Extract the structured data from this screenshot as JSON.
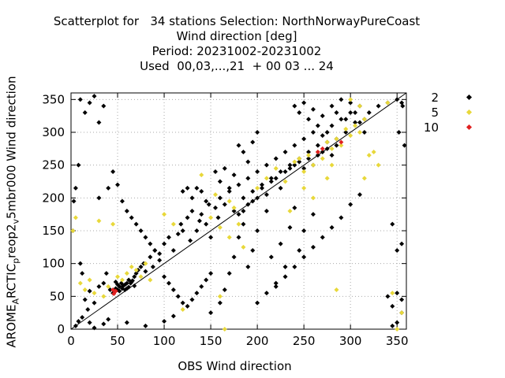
{
  "chart_data": {
    "type": "scatter",
    "title_lines": [
      "Scatterplot for   34 stations Selection: NorthNorwayPureCoast",
      "Wind direction [deg]",
      "Period: 20231002-20231002",
      "Used  00,03,...,21  + 00 03 ... 24"
    ],
    "xlabel": "OBS Wind direction",
    "ylabel": {
      "part1": "AROME",
      "sub1": "A",
      "part2": "RCTIC",
      "sub2": "p",
      "part3": "reop2",
      "sub3": "v",
      "part4": "5mbr000 Wind direction"
    },
    "xlim": [
      0,
      360
    ],
    "ylim": [
      0,
      360
    ],
    "xticks": [
      0,
      50,
      100,
      150,
      200,
      250,
      300,
      350
    ],
    "yticks": [
      0,
      50,
      100,
      150,
      200,
      250,
      300,
      350
    ],
    "grid": true,
    "diagonal_line": true,
    "legend_position": "right",
    "series": [
      {
        "name": "2",
        "color": "#000000",
        "points": [
          [
            5,
            5
          ],
          [
            8,
            12
          ],
          [
            12,
            18
          ],
          [
            15,
            45
          ],
          [
            18,
            30
          ],
          [
            20,
            58
          ],
          [
            25,
            40
          ],
          [
            30,
            65
          ],
          [
            35,
            70
          ],
          [
            38,
            85
          ],
          [
            42,
            60
          ],
          [
            45,
            55
          ],
          [
            48,
            72
          ],
          [
            50,
            60
          ],
          [
            52,
            65
          ],
          [
            55,
            62
          ],
          [
            58,
            68
          ],
          [
            60,
            70
          ],
          [
            62,
            75
          ],
          [
            65,
            72
          ],
          [
            68,
            80
          ],
          [
            70,
            85
          ],
          [
            72,
            90
          ],
          [
            75,
            95
          ],
          [
            78,
            100
          ],
          [
            80,
            88
          ],
          [
            85,
            110
          ],
          [
            88,
            95
          ],
          [
            90,
            120
          ],
          [
            95,
            105
          ],
          [
            100,
            130
          ],
          [
            105,
            140
          ],
          [
            110,
            120
          ],
          [
            115,
            145
          ],
          [
            118,
            160
          ],
          [
            120,
            150
          ],
          [
            125,
            170
          ],
          [
            128,
            135
          ],
          [
            130,
            180
          ],
          [
            135,
            150
          ],
          [
            138,
            165
          ],
          [
            140,
            175
          ],
          [
            145,
            160
          ],
          [
            148,
            190
          ],
          [
            150,
            140
          ],
          [
            155,
            185
          ],
          [
            158,
            170
          ],
          [
            160,
            200
          ],
          [
            165,
            190
          ],
          [
            170,
            210
          ],
          [
            175,
            180
          ],
          [
            180,
            220
          ],
          [
            185,
            200
          ],
          [
            190,
            230
          ],
          [
            195,
            210
          ],
          [
            200,
            240
          ],
          [
            205,
            220
          ],
          [
            210,
            250
          ],
          [
            215,
            230
          ],
          [
            220,
            260
          ],
          [
            225,
            240
          ],
          [
            230,
            270
          ],
          [
            235,
            250
          ],
          [
            240,
            280
          ],
          [
            245,
            260
          ],
          [
            250,
            290
          ],
          [
            255,
            270
          ],
          [
            260,
            300
          ],
          [
            265,
            280
          ],
          [
            270,
            295
          ],
          [
            275,
            285
          ],
          [
            280,
            310
          ],
          [
            285,
            290
          ],
          [
            290,
            320
          ],
          [
            295,
            300
          ],
          [
            300,
            330
          ],
          [
            305,
            315
          ],
          [
            310,
            340
          ],
          [
            315,
            320
          ],
          [
            320,
            330
          ],
          [
            330,
            340
          ],
          [
            340,
            345
          ],
          [
            350,
            350
          ],
          [
            355,
            345
          ],
          [
            10,
            350
          ],
          [
            15,
            330
          ],
          [
            20,
            345
          ],
          [
            25,
            355
          ],
          [
            30,
            315
          ],
          [
            35,
            340
          ],
          [
            5,
            215
          ],
          [
            8,
            250
          ],
          [
            3,
            195
          ],
          [
            2,
            150
          ],
          [
            10,
            100
          ],
          [
            12,
            85
          ],
          [
            20,
            10
          ],
          [
            25,
            2
          ],
          [
            35,
            8
          ],
          [
            40,
            15
          ],
          [
            60,
            10
          ],
          [
            80,
            5
          ],
          [
            100,
            12
          ],
          [
            110,
            20
          ],
          [
            150,
            25
          ],
          [
            160,
            40
          ],
          [
            165,
            60
          ],
          [
            170,
            85
          ],
          [
            175,
            110
          ],
          [
            180,
            140
          ],
          [
            185,
            160
          ],
          [
            190,
            95
          ],
          [
            195,
            120
          ],
          [
            200,
            150
          ],
          [
            210,
            180
          ],
          [
            215,
            110
          ],
          [
            220,
            70
          ],
          [
            225,
            130
          ],
          [
            230,
            95
          ],
          [
            235,
            155
          ],
          [
            240,
            185
          ],
          [
            245,
            120
          ],
          [
            250,
            150
          ],
          [
            260,
            175
          ],
          [
            120,
            210
          ],
          [
            125,
            215
          ],
          [
            130,
            200
          ],
          [
            135,
            215
          ],
          [
            140,
            210
          ],
          [
            145,
            195
          ],
          [
            155,
            240
          ],
          [
            160,
            225
          ],
          [
            165,
            245
          ],
          [
            170,
            215
          ],
          [
            175,
            235
          ],
          [
            180,
            280
          ],
          [
            185,
            270
          ],
          [
            190,
            255
          ],
          [
            195,
            285
          ],
          [
            200,
            300
          ],
          [
            240,
            340
          ],
          [
            245,
            330
          ],
          [
            250,
            345
          ],
          [
            255,
            320
          ],
          [
            260,
            335
          ],
          [
            265,
            310
          ],
          [
            270,
            325
          ],
          [
            275,
            300
          ],
          [
            280,
            340
          ],
          [
            285,
            330
          ],
          [
            290,
            350
          ],
          [
            295,
            320
          ],
          [
            300,
            345
          ],
          [
            305,
            330
          ],
          [
            310,
            315
          ],
          [
            315,
            300
          ],
          [
            350,
            120
          ],
          [
            355,
            130
          ],
          [
            345,
            160
          ],
          [
            355,
            45
          ],
          [
            350,
            55
          ],
          [
            345,
            35
          ],
          [
            355,
            25
          ],
          [
            340,
            50
          ],
          [
            350,
            10
          ],
          [
            345,
            5
          ],
          [
            356,
            340
          ],
          [
            352,
            300
          ],
          [
            358,
            280
          ],
          [
            30,
            200
          ],
          [
            40,
            215
          ],
          [
            50,
            220
          ],
          [
            45,
            240
          ],
          [
            55,
            195
          ],
          [
            60,
            180
          ],
          [
            65,
            170
          ],
          [
            70,
            160
          ],
          [
            75,
            150
          ],
          [
            80,
            140
          ],
          [
            85,
            130
          ],
          [
            90,
            120
          ],
          [
            95,
            115
          ],
          [
            100,
            80
          ],
          [
            105,
            70
          ],
          [
            110,
            60
          ],
          [
            115,
            50
          ],
          [
            120,
            40
          ],
          [
            125,
            35
          ],
          [
            130,
            45
          ],
          [
            135,
            55
          ],
          [
            140,
            65
          ],
          [
            145,
            75
          ],
          [
            150,
            85
          ],
          [
            200,
            40
          ],
          [
            210,
            55
          ],
          [
            220,
            65
          ],
          [
            230,
            80
          ],
          [
            240,
            95
          ],
          [
            250,
            110
          ],
          [
            260,
            125
          ],
          [
            270,
            140
          ],
          [
            280,
            155
          ],
          [
            290,
            170
          ],
          [
            300,
            190
          ],
          [
            310,
            205
          ],
          [
            48,
            62
          ],
          [
            52,
            58
          ],
          [
            56,
            66
          ],
          [
            58,
            60
          ],
          [
            62,
            64
          ],
          [
            64,
            70
          ],
          [
            54,
            70
          ],
          [
            50,
            68
          ],
          [
            46,
            56
          ],
          [
            60,
            62
          ],
          [
            66,
            74
          ],
          [
            68,
            66
          ],
          [
            245,
            255
          ],
          [
            250,
            245
          ],
          [
            255,
            260
          ],
          [
            260,
            250
          ],
          [
            265,
            265
          ],
          [
            270,
            270
          ],
          [
            275,
            275
          ],
          [
            280,
            265
          ],
          [
            285,
            280
          ],
          [
            240,
            250
          ],
          [
            235,
            245
          ],
          [
            230,
            240
          ],
          [
            215,
            225
          ],
          [
            220,
            230
          ],
          [
            225,
            215
          ],
          [
            210,
            205
          ],
          [
            205,
            215
          ],
          [
            200,
            200
          ],
          [
            195,
            195
          ],
          [
            190,
            190
          ],
          [
            185,
            180
          ],
          [
            180,
            175
          ]
        ]
      },
      {
        "name": "5",
        "color": "#e8d83a",
        "points": [
          [
            2,
            150
          ],
          [
            5,
            170
          ],
          [
            10,
            70
          ],
          [
            15,
            60
          ],
          [
            20,
            75
          ],
          [
            25,
            55
          ],
          [
            30,
            165
          ],
          [
            35,
            50
          ],
          [
            40,
            65
          ],
          [
            45,
            160
          ],
          [
            50,
            80
          ],
          [
            55,
            75
          ],
          [
            60,
            85
          ],
          [
            65,
            95
          ],
          [
            70,
            90
          ],
          [
            75,
            80
          ],
          [
            80,
            100
          ],
          [
            85,
            75
          ],
          [
            150,
            170
          ],
          [
            160,
            155
          ],
          [
            170,
            195
          ],
          [
            175,
            185
          ],
          [
            180,
            160
          ],
          [
            200,
            215
          ],
          [
            210,
            230
          ],
          [
            220,
            245
          ],
          [
            230,
            225
          ],
          [
            240,
            255
          ],
          [
            245,
            260
          ],
          [
            250,
            240
          ],
          [
            255,
            265
          ],
          [
            260,
            250
          ],
          [
            265,
            270
          ],
          [
            270,
            260
          ],
          [
            275,
            285
          ],
          [
            280,
            275
          ],
          [
            285,
            290
          ],
          [
            290,
            280
          ],
          [
            295,
            305
          ],
          [
            300,
            295
          ],
          [
            305,
            310
          ],
          [
            310,
            300
          ],
          [
            315,
            320
          ],
          [
            165,
            0
          ],
          [
            350,
            0
          ],
          [
            355,
            25
          ],
          [
            345,
            55
          ],
          [
            285,
            60
          ],
          [
            160,
            50
          ],
          [
            120,
            30
          ],
          [
            110,
            160
          ],
          [
            100,
            175
          ],
          [
            140,
            235
          ],
          [
            155,
            205
          ],
          [
            170,
            140
          ],
          [
            185,
            125
          ],
          [
            235,
            180
          ],
          [
            250,
            215
          ],
          [
            260,
            200
          ],
          [
            275,
            230
          ],
          [
            280,
            250
          ],
          [
            315,
            230
          ],
          [
            320,
            265
          ],
          [
            325,
            270
          ],
          [
            330,
            250
          ],
          [
            300,
            350
          ],
          [
            310,
            340
          ],
          [
            340,
            345
          ]
        ]
      },
      {
        "name": "10",
        "color": "#e02020",
        "points": [
          [
            45,
            60
          ],
          [
            48,
            58
          ],
          [
            46,
            54
          ],
          [
            265,
            270
          ],
          [
            270,
            275
          ],
          [
            290,
            285
          ]
        ]
      }
    ]
  }
}
